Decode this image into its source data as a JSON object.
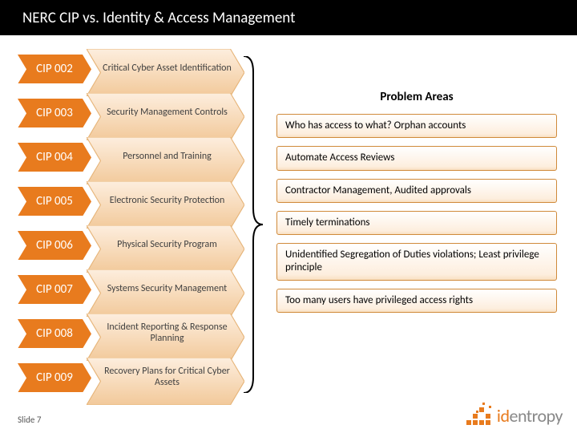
{
  "title": "NERC CIP vs. Identity & Access Management",
  "colors": {
    "tag_bg": "#e87b1e",
    "tag_text": "#ffffff",
    "desc_bg_top": "#fdeede",
    "desc_bg_bottom": "#f2c99a",
    "desc_border": "#e6b478",
    "problem_border": "#d08a3a",
    "title_bg": "#000000",
    "bracket": "#000000"
  },
  "cip_items": [
    {
      "code": "CIP 002",
      "desc": "Critical Cyber Asset Identification"
    },
    {
      "code": "CIP 003",
      "desc": "Security Management Controls"
    },
    {
      "code": "CIP 004",
      "desc": "Personnel and Training"
    },
    {
      "code": "CIP 005",
      "desc": "Electronic Security Protection"
    },
    {
      "code": "CIP 006",
      "desc": "Physical Security Program"
    },
    {
      "code": "CIP 007",
      "desc": "Systems Security Management"
    },
    {
      "code": "CIP 008",
      "desc": "Incident Reporting & Response Planning"
    },
    {
      "code": "CIP 009",
      "desc": "Recovery Plans for Critical Cyber Assets"
    }
  ],
  "problem_header": "Problem Areas",
  "problems": [
    "Who has access to what? Orphan accounts",
    "Automate Access Reviews",
    "Contractor Management, Audited approvals",
    "Timely terminations",
    "Unidentified Segregation of Duties violations; Least privilege principle",
    "Too many users have privileged access rights"
  ],
  "footer": "Slide 7",
  "logo": {
    "part1": "id",
    "part2": "entropy"
  }
}
